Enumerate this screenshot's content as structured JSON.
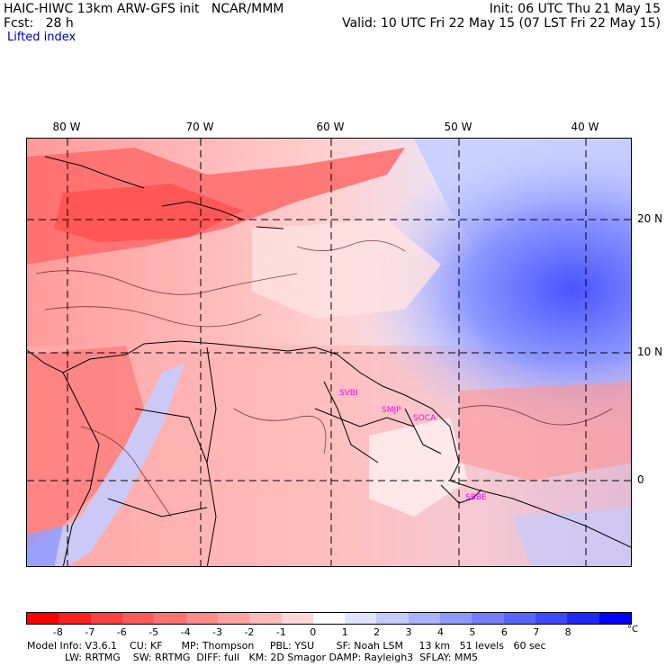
{
  "header": {
    "model": "HAIC-HIWC 13km ARW-GFS init   NCAR/MMM",
    "init": "Init: 06 UTC Thu 21 May 15",
    "fcst": "Fcst:   28 h",
    "valid": "Valid: 10 UTC Fri 22 May 15 (07 LST Fri 22 May 15)",
    "field": "Lifted index"
  },
  "axes": {
    "lon_labels": [
      "80 W",
      "70 W",
      "60 W",
      "50 W",
      "40 W"
    ],
    "lat_labels": [
      "20 N",
      "10 N",
      "0"
    ]
  },
  "map": {
    "region": "Caribbean and northern South America",
    "stations": [
      "SVBI",
      "SMJP",
      "SOCA",
      "SBBE"
    ]
  },
  "colorbar": {
    "tick_labels": [
      "-8",
      "-7",
      "-6",
      "-5",
      "-4",
      "-3",
      "-2",
      "-1",
      "0",
      "1",
      "2",
      "3",
      "4",
      "5",
      "6",
      "7",
      "8"
    ],
    "unit": "°C",
    "colors": [
      "#ff0000",
      "#ff2020",
      "#ff4040",
      "#ff5a5a",
      "#ff7272",
      "#ff8a8a",
      "#ffa2a2",
      "#ffbaba",
      "#ffd8d8",
      "#ffffff",
      "#e0e4ff",
      "#c6ccff",
      "#aab2ff",
      "#8e98ff",
      "#747eff",
      "#5a64ff",
      "#3e48ff",
      "#2028ff",
      "#0000ff"
    ]
  },
  "footer": {
    "line1": "Model Info: V3.6.1    CU: KF      MP: Thompson     PBL: YSU       SF: Noah LSM     13 km   51 levels   60 sec",
    "line2": "            LW: RRTMG    SW: RRTMG  DIFF: full   KM: 2D Smagor DAMP: Rayleigh3  SFLAY: MM5"
  }
}
